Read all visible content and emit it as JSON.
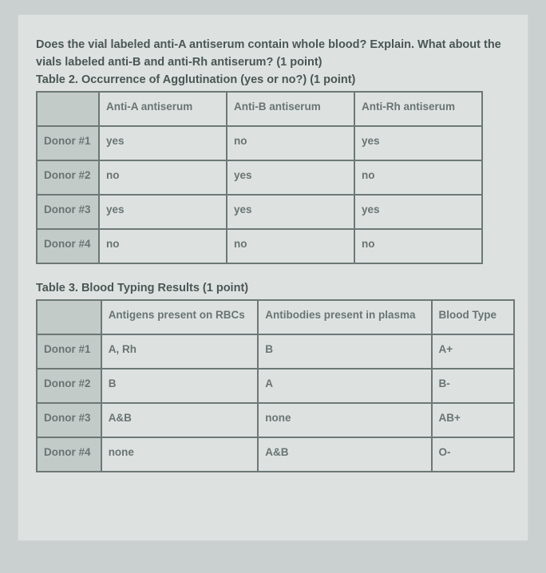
{
  "question": {
    "line1": "Does the vial labeled anti-A antiserum contain whole blood? Explain. What about the",
    "line2": "vials labeled anti-B and anti-Rh antiserum? (1 point)"
  },
  "table2": {
    "caption": "Table 2. Occurrence of Agglutination (yes or no?) (1 point)",
    "headers": {
      "col1": "Anti-A antiserum",
      "col2": "Anti-B antiserum",
      "col3": "Anti-Rh antiserum"
    },
    "rows": [
      {
        "donor": "Donor #1",
        "c1": "yes",
        "c2": "no",
        "c3": "yes"
      },
      {
        "donor": "Donor #2",
        "c1": "no",
        "c2": "yes",
        "c3": "no"
      },
      {
        "donor": "Donor #3",
        "c1": "yes",
        "c2": "yes",
        "c3": "yes"
      },
      {
        "donor": "Donor #4",
        "c1": "no",
        "c2": "no",
        "c3": "no"
      }
    ]
  },
  "table3": {
    "caption": "Table 3. Blood Typing Results (1 point)",
    "headers": {
      "col1": "Antigens present on RBCs",
      "col2": "Antibodies present in plasma",
      "col3": "Blood Type"
    },
    "rows": [
      {
        "donor": "Donor #1",
        "c1": "A, Rh",
        "c2": "B",
        "c3": "A+"
      },
      {
        "donor": "Donor #2",
        "c1": "B",
        "c2": "A",
        "c3": "B-"
      },
      {
        "donor": "Donor #3",
        "c1": "A&B",
        "c2": "none",
        "c3": "AB+"
      },
      {
        "donor": "Donor #4",
        "c1": "none",
        "c2": "A&B",
        "c3": "O-"
      }
    ]
  },
  "style": {
    "page_bg": "#dde2e1",
    "outer_bg": "#c9d0cf",
    "border_color": "#6d7876",
    "text_color": "#697472",
    "header_text_color": "#4a5654",
    "shaded_bg": "#c3cbc9",
    "font_size_body": 13.5,
    "font_size_header": 14.5
  }
}
